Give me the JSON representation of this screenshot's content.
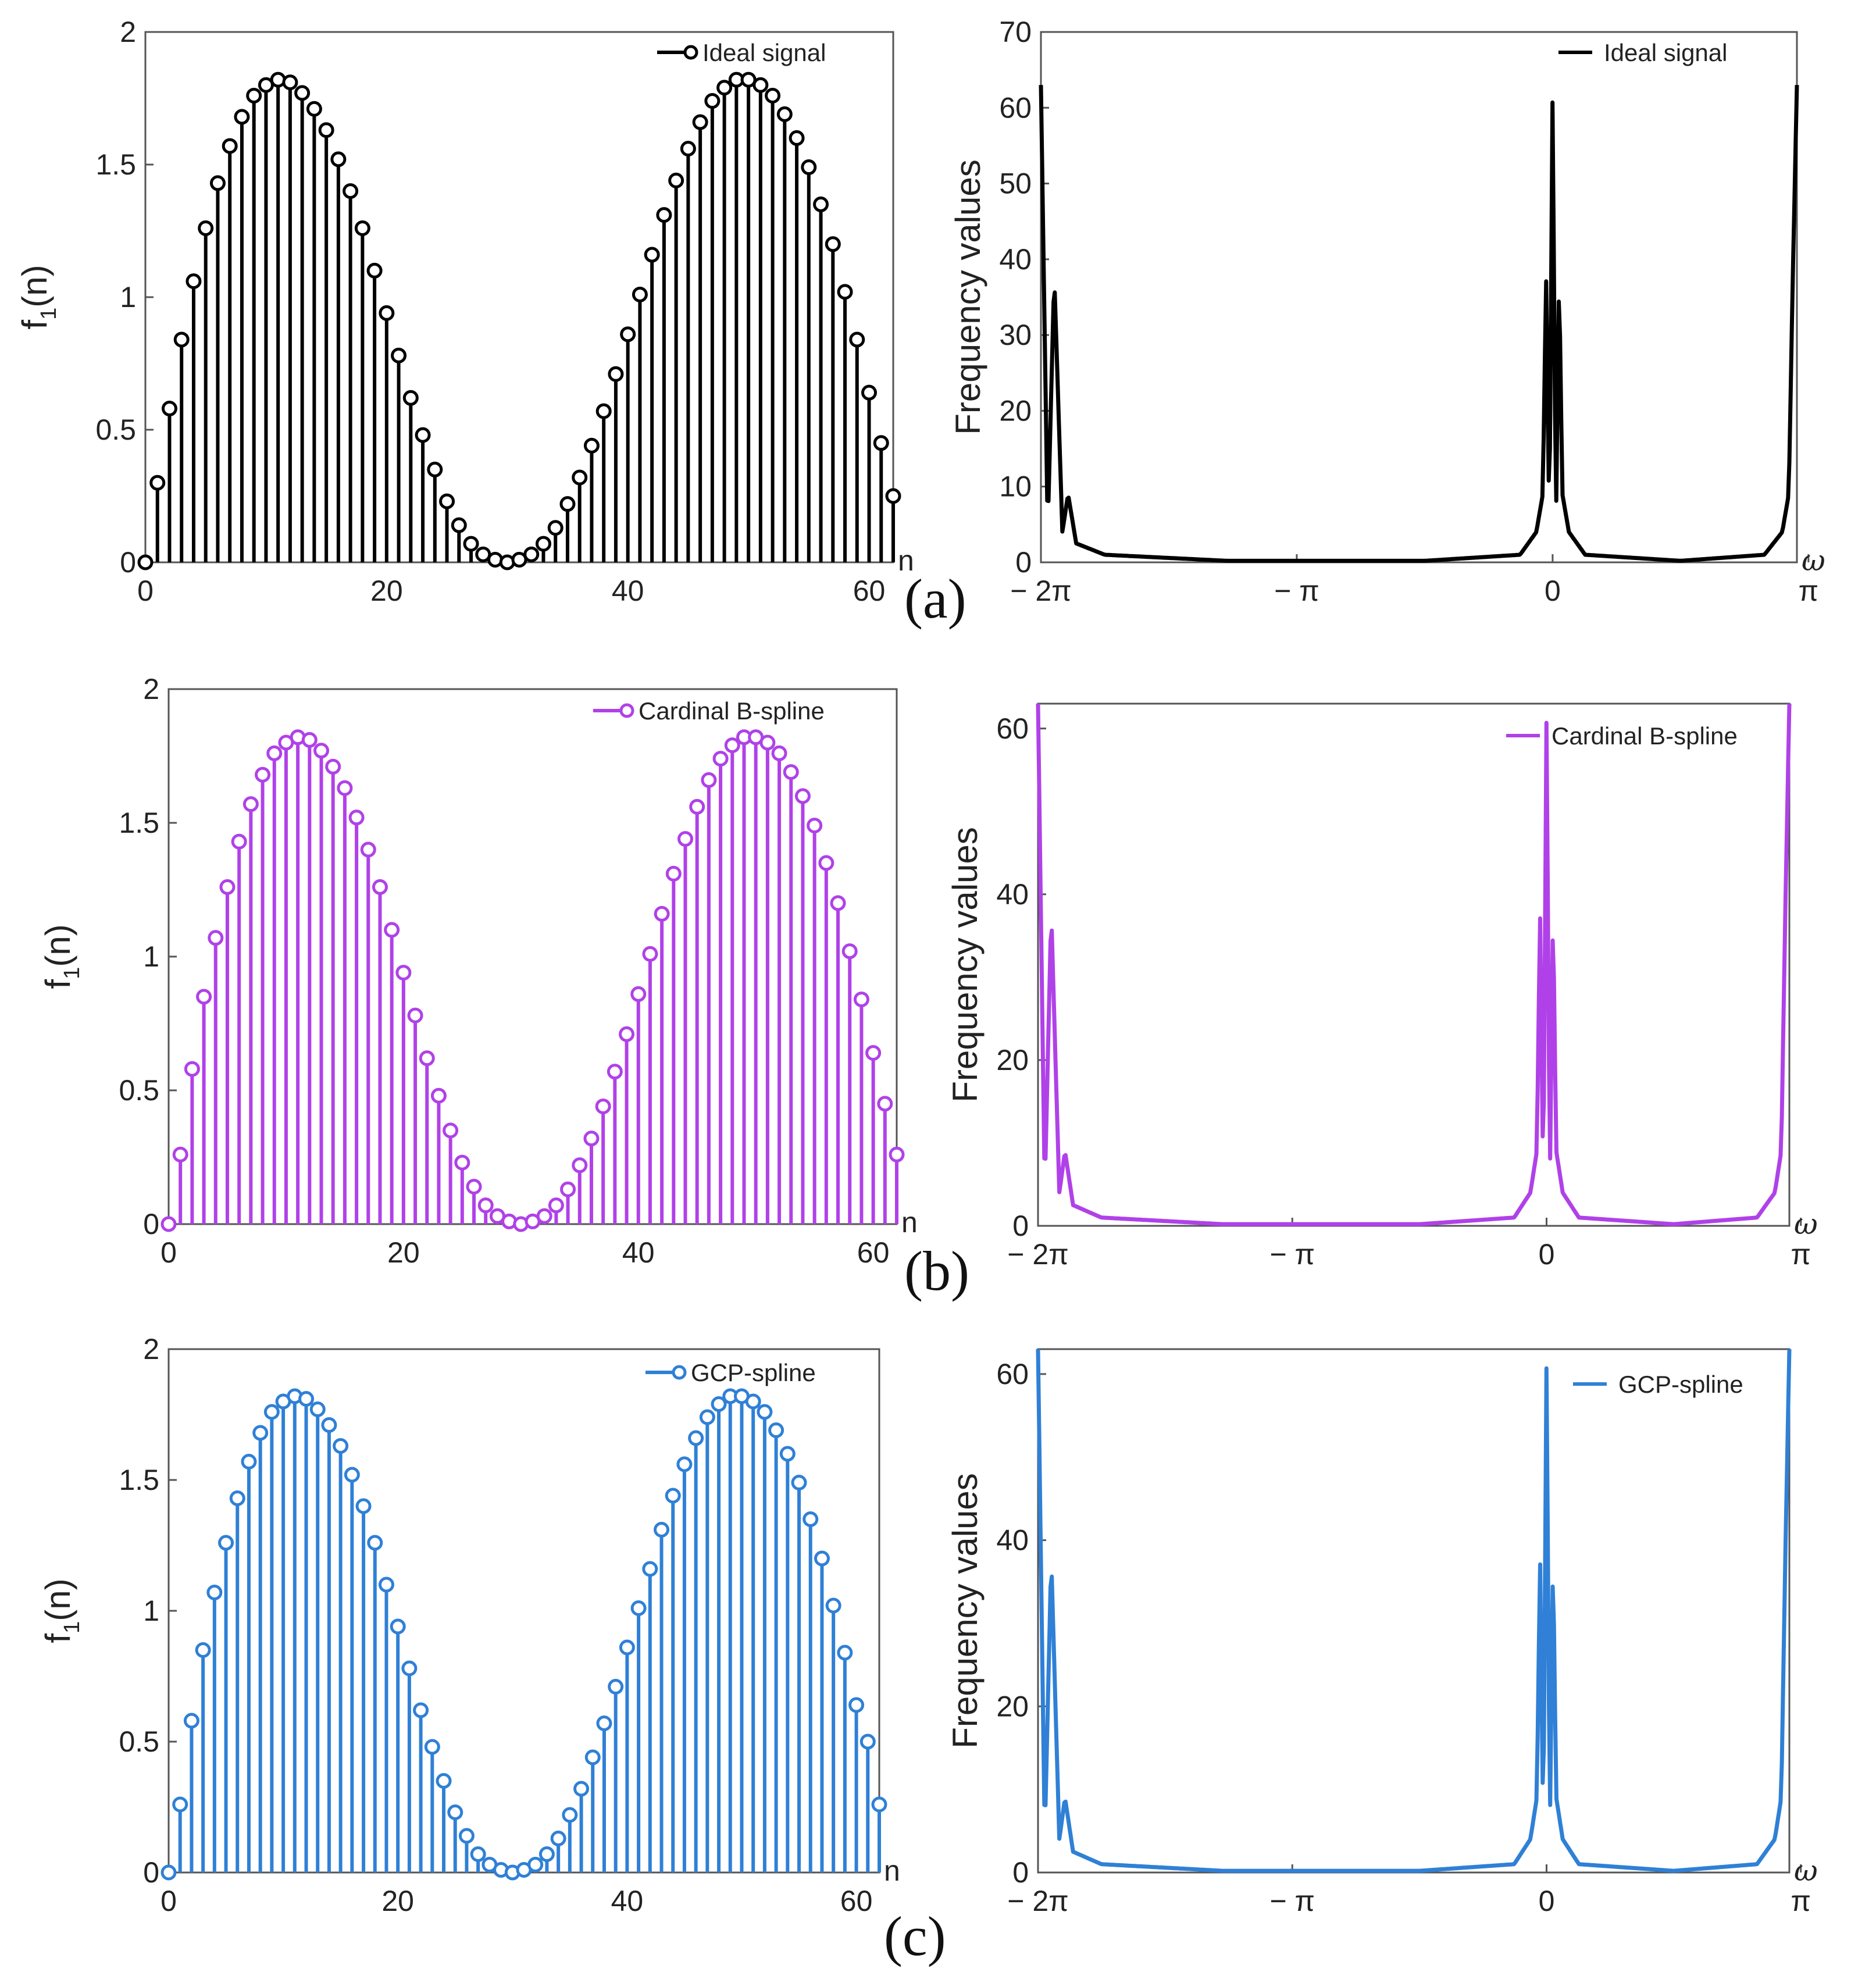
{
  "chart_data": [
    {
      "type": "stem",
      "panel": "(a)",
      "series_name": "Ideal signal",
      "color": "#000000",
      "ylabel": "f",
      "ylabel_sub": "1",
      "ylabel_suffix": "(n)",
      "xlabel": "n",
      "xlim": [
        0,
        62
      ],
      "ylim": [
        0,
        2
      ],
      "xticks": [
        0,
        20,
        40,
        60
      ],
      "xtick_labels": [
        "0",
        "20",
        "40",
        "60"
      ],
      "yticks": [
        0,
        0.5,
        1,
        1.5,
        2
      ],
      "ytick_labels": [
        "0",
        "0.5",
        "1",
        "1.5",
        "2"
      ],
      "x": [
        0,
        1,
        2,
        3,
        4,
        5,
        6,
        7,
        8,
        9,
        10,
        11,
        12,
        13,
        14,
        15,
        16,
        17,
        18,
        19,
        20,
        21,
        22,
        23,
        24,
        25,
        26,
        27,
        28,
        29,
        30,
        31,
        32,
        33,
        34,
        35,
        36,
        37,
        38,
        39,
        40,
        41,
        42,
        43,
        44,
        45,
        46,
        47,
        48,
        49,
        50,
        51,
        52,
        53,
        54,
        55,
        56,
        57,
        58,
        59,
        60,
        61,
        62
      ],
      "values": [
        0,
        0.3,
        0.58,
        0.84,
        1.06,
        1.26,
        1.43,
        1.57,
        1.68,
        1.76,
        1.8,
        1.82,
        1.81,
        1.77,
        1.71,
        1.63,
        1.52,
        1.4,
        1.26,
        1.1,
        0.94,
        0.78,
        0.62,
        0.48,
        0.35,
        0.23,
        0.14,
        0.07,
        0.03,
        0.01,
        0,
        0.01,
        0.03,
        0.07,
        0.13,
        0.22,
        0.32,
        0.44,
        0.57,
        0.71,
        0.86,
        1.01,
        1.16,
        1.31,
        1.44,
        1.56,
        1.66,
        1.74,
        1.79,
        1.82,
        1.82,
        1.8,
        1.76,
        1.69,
        1.6,
        1.49,
        1.35,
        1.2,
        1.02,
        0.84,
        0.64,
        0.45,
        0.25
      ]
    },
    {
      "type": "line",
      "panel": "(a)",
      "series_name": "Ideal signal",
      "color": "#000000",
      "ylabel": "Frequency values",
      "xlabel": "ω",
      "xlim": [
        -6.2832,
        3.0
      ],
      "ylim": [
        0,
        70
      ],
      "xtick_labels": [
        "− 2π",
        "− π",
        "0",
        "π"
      ],
      "yticks": [
        0,
        10,
        20,
        30,
        40,
        50,
        60,
        70
      ],
      "ytick_labels": [
        "0",
        "10",
        "20",
        "30",
        "40",
        "50",
        "60",
        "70"
      ],
      "description_points": [
        [
          -6.2832,
          63
        ],
        [
          -6.2,
          4
        ],
        [
          -6.12,
          38
        ],
        [
          -6.02,
          4
        ],
        [
          -5.95,
          9
        ],
        [
          -5.85,
          2.5
        ],
        [
          -5.5,
          1
        ],
        [
          -4,
          0.2
        ],
        [
          -1.57,
          0.2
        ],
        [
          -0.4,
          1
        ],
        [
          -0.2,
          4
        ],
        [
          -0.12,
          9
        ],
        [
          -0.08,
          38
        ],
        [
          -0.04,
          4
        ],
        [
          0,
          63
        ],
        [
          0.04,
          4
        ],
        [
          0.08,
          38
        ],
        [
          0.12,
          9
        ],
        [
          0.2,
          4
        ],
        [
          0.4,
          1
        ],
        [
          1.57,
          0.2
        ],
        [
          2.6,
          1
        ],
        [
          2.82,
          4
        ],
        [
          2.9,
          9
        ],
        [
          2.95,
          38
        ],
        [
          3.0,
          63
        ]
      ]
    },
    {
      "type": "stem",
      "panel": "(b)",
      "series_name": "Cardinal B-spline",
      "color": "#b041e8",
      "ylabel": "f",
      "ylabel_sub": "1",
      "ylabel_suffix": "(n)",
      "xlabel": "n",
      "xlim": [
        0,
        62
      ],
      "ylim": [
        0,
        2
      ],
      "xticks": [
        0,
        20,
        40,
        60
      ],
      "xtick_labels": [
        "0",
        "20",
        "40",
        "60"
      ],
      "yticks": [
        0,
        0.5,
        1,
        1.5,
        2
      ],
      "ytick_labels": [
        "0",
        "0.5",
        "1",
        "1.5",
        "2"
      ],
      "x": [
        0,
        1,
        2,
        3,
        4,
        5,
        6,
        7,
        8,
        9,
        10,
        11,
        12,
        13,
        14,
        15,
        16,
        17,
        18,
        19,
        20,
        21,
        22,
        23,
        24,
        25,
        26,
        27,
        28,
        29,
        30,
        31,
        32,
        33,
        34,
        35,
        36,
        37,
        38,
        39,
        40,
        41,
        42,
        43,
        44,
        45,
        46,
        47,
        48,
        49,
        50,
        51,
        52,
        53,
        54,
        55,
        56,
        57,
        58,
        59,
        60,
        61,
        62
      ],
      "values": [
        0,
        0.26,
        0.58,
        0.85,
        1.07,
        1.26,
        1.43,
        1.57,
        1.68,
        1.76,
        1.8,
        1.82,
        1.81,
        1.77,
        1.71,
        1.63,
        1.52,
        1.4,
        1.26,
        1.1,
        0.94,
        0.78,
        0.62,
        0.48,
        0.35,
        0.23,
        0.14,
        0.07,
        0.03,
        0.01,
        0,
        0.01,
        0.03,
        0.07,
        0.13,
        0.22,
        0.32,
        0.44,
        0.57,
        0.71,
        0.86,
        1.01,
        1.16,
        1.31,
        1.44,
        1.56,
        1.66,
        1.74,
        1.79,
        1.82,
        1.82,
        1.8,
        1.76,
        1.69,
        1.6,
        1.49,
        1.35,
        1.2,
        1.02,
        0.84,
        0.64,
        0.45,
        0.26
      ]
    },
    {
      "type": "line",
      "panel": "(b)",
      "series_name": "Cardinal B-spline",
      "color": "#b041e8",
      "ylabel": "Frequency values",
      "xlabel": "ω",
      "xlim": [
        -6.2832,
        3.0
      ],
      "ylim": [
        0,
        63
      ],
      "xtick_labels": [
        "− 2π",
        "− π",
        "0",
        "π"
      ],
      "yticks": [
        0,
        20,
        40,
        60
      ],
      "ytick_labels": [
        "0",
        "20",
        "40",
        "60"
      ],
      "description_points": [
        [
          -6.2832,
          63
        ],
        [
          -6.2,
          4
        ],
        [
          -6.12,
          38
        ],
        [
          -6.02,
          4
        ],
        [
          -5.95,
          9
        ],
        [
          -5.85,
          2.5
        ],
        [
          -5.5,
          1
        ],
        [
          -4,
          0.2
        ],
        [
          -1.57,
          0.2
        ],
        [
          -0.4,
          1
        ],
        [
          -0.2,
          4
        ],
        [
          -0.12,
          9
        ],
        [
          -0.08,
          38
        ],
        [
          -0.04,
          4
        ],
        [
          0,
          63
        ],
        [
          0.04,
          4
        ],
        [
          0.08,
          38
        ],
        [
          0.12,
          9
        ],
        [
          0.2,
          4
        ],
        [
          0.4,
          1
        ],
        [
          1.57,
          0.2
        ],
        [
          2.6,
          1
        ],
        [
          2.82,
          4
        ],
        [
          2.9,
          9
        ],
        [
          2.95,
          38
        ],
        [
          3.0,
          63
        ]
      ]
    },
    {
      "type": "stem",
      "panel": "(c)",
      "series_name": "GCP-spline",
      "color": "#2f80d6",
      "ylabel": "f",
      "ylabel_sub": "1",
      "ylabel_suffix": "(n)",
      "xlabel": "n",
      "xlim": [
        0,
        62
      ],
      "ylim": [
        0,
        2
      ],
      "xticks": [
        0,
        20,
        40,
        60
      ],
      "xtick_labels": [
        "0",
        "20",
        "40",
        "60"
      ],
      "yticks": [
        0,
        0.5,
        1,
        1.5,
        2
      ],
      "ytick_labels": [
        "0",
        "0.5",
        "1",
        "1.5",
        "2"
      ],
      "x": [
        0,
        1,
        2,
        3,
        4,
        5,
        6,
        7,
        8,
        9,
        10,
        11,
        12,
        13,
        14,
        15,
        16,
        17,
        18,
        19,
        20,
        21,
        22,
        23,
        24,
        25,
        26,
        27,
        28,
        29,
        30,
        31,
        32,
        33,
        34,
        35,
        36,
        37,
        38,
        39,
        40,
        41,
        42,
        43,
        44,
        45,
        46,
        47,
        48,
        49,
        50,
        51,
        52,
        53,
        54,
        55,
        56,
        57,
        58,
        59,
        60,
        61,
        62
      ],
      "values": [
        0,
        0.26,
        0.58,
        0.85,
        1.07,
        1.26,
        1.43,
        1.57,
        1.68,
        1.76,
        1.8,
        1.82,
        1.81,
        1.77,
        1.71,
        1.63,
        1.52,
        1.4,
        1.26,
        1.1,
        0.94,
        0.78,
        0.62,
        0.48,
        0.35,
        0.23,
        0.14,
        0.07,
        0.03,
        0.01,
        0,
        0.01,
        0.03,
        0.07,
        0.13,
        0.22,
        0.32,
        0.44,
        0.57,
        0.71,
        0.86,
        1.01,
        1.16,
        1.31,
        1.44,
        1.56,
        1.66,
        1.74,
        1.79,
        1.82,
        1.82,
        1.8,
        1.76,
        1.69,
        1.6,
        1.49,
        1.35,
        1.2,
        1.02,
        0.84,
        0.64,
        0.5,
        0.26
      ]
    },
    {
      "type": "line",
      "panel": "(c)",
      "series_name": "GCP-spline",
      "color": "#2f80d6",
      "ylabel": "Frequency values",
      "xlabel": "ω",
      "xlim": [
        -6.2832,
        3.0
      ],
      "ylim": [
        0,
        63
      ],
      "xtick_labels": [
        "− 2π",
        "− π",
        "0",
        "π"
      ],
      "yticks": [
        0,
        20,
        40,
        60
      ],
      "ytick_labels": [
        "0",
        "20",
        "40",
        "60"
      ],
      "description_points": [
        [
          -6.2832,
          63
        ],
        [
          -6.2,
          4
        ],
        [
          -6.12,
          38
        ],
        [
          -6.02,
          4
        ],
        [
          -5.95,
          9
        ],
        [
          -5.85,
          2.5
        ],
        [
          -5.5,
          1
        ],
        [
          -4,
          0.2
        ],
        [
          -1.57,
          0.2
        ],
        [
          -0.4,
          1
        ],
        [
          -0.2,
          4
        ],
        [
          -0.12,
          9
        ],
        [
          -0.08,
          38
        ],
        [
          -0.04,
          4
        ],
        [
          0,
          63
        ],
        [
          0.04,
          4
        ],
        [
          0.08,
          38
        ],
        [
          0.12,
          9
        ],
        [
          0.2,
          4
        ],
        [
          0.4,
          1
        ],
        [
          1.57,
          0.2
        ],
        [
          2.6,
          1
        ],
        [
          2.82,
          4
        ],
        [
          2.9,
          9
        ],
        [
          2.95,
          38
        ],
        [
          3.0,
          63
        ]
      ]
    }
  ],
  "panel_labels": [
    "(a)",
    "(b)",
    "(c)"
  ]
}
